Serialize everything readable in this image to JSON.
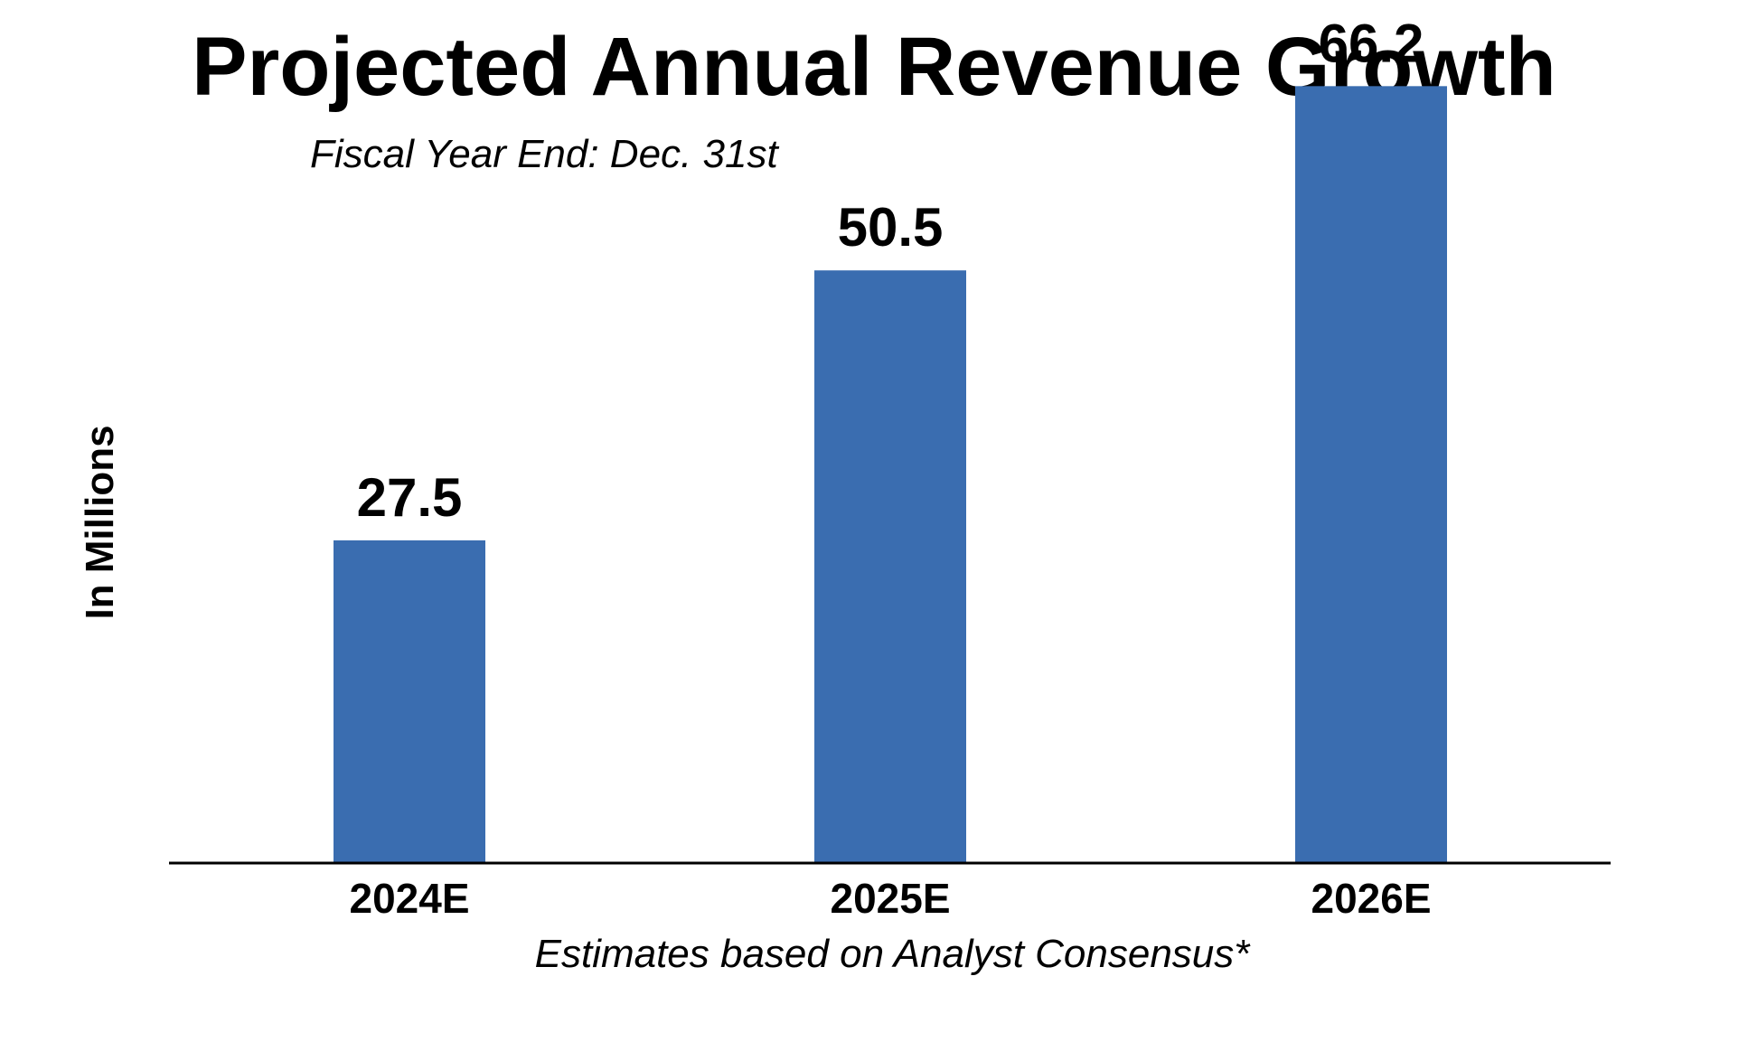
{
  "chart_data": {
    "type": "bar",
    "title": "Projected Annual Revenue Growth",
    "subtitle": "Fiscal Year End: Dec. 31st",
    "xlabel": "",
    "ylabel": "In Millions",
    "footnote": "Estimates based on Analyst Consensus*",
    "categories": [
      "2024E",
      "2025E",
      "2026E"
    ],
    "values": [
      27.5,
      50.5,
      66.2
    ],
    "value_labels": [
      "27.5",
      "50.5",
      "66.2"
    ],
    "ylim": [
      0,
      72
    ],
    "grid": false,
    "legend": "none",
    "colors": {
      "bar": "#3A6DB0",
      "axis": "#000000",
      "text": "#000000"
    }
  }
}
